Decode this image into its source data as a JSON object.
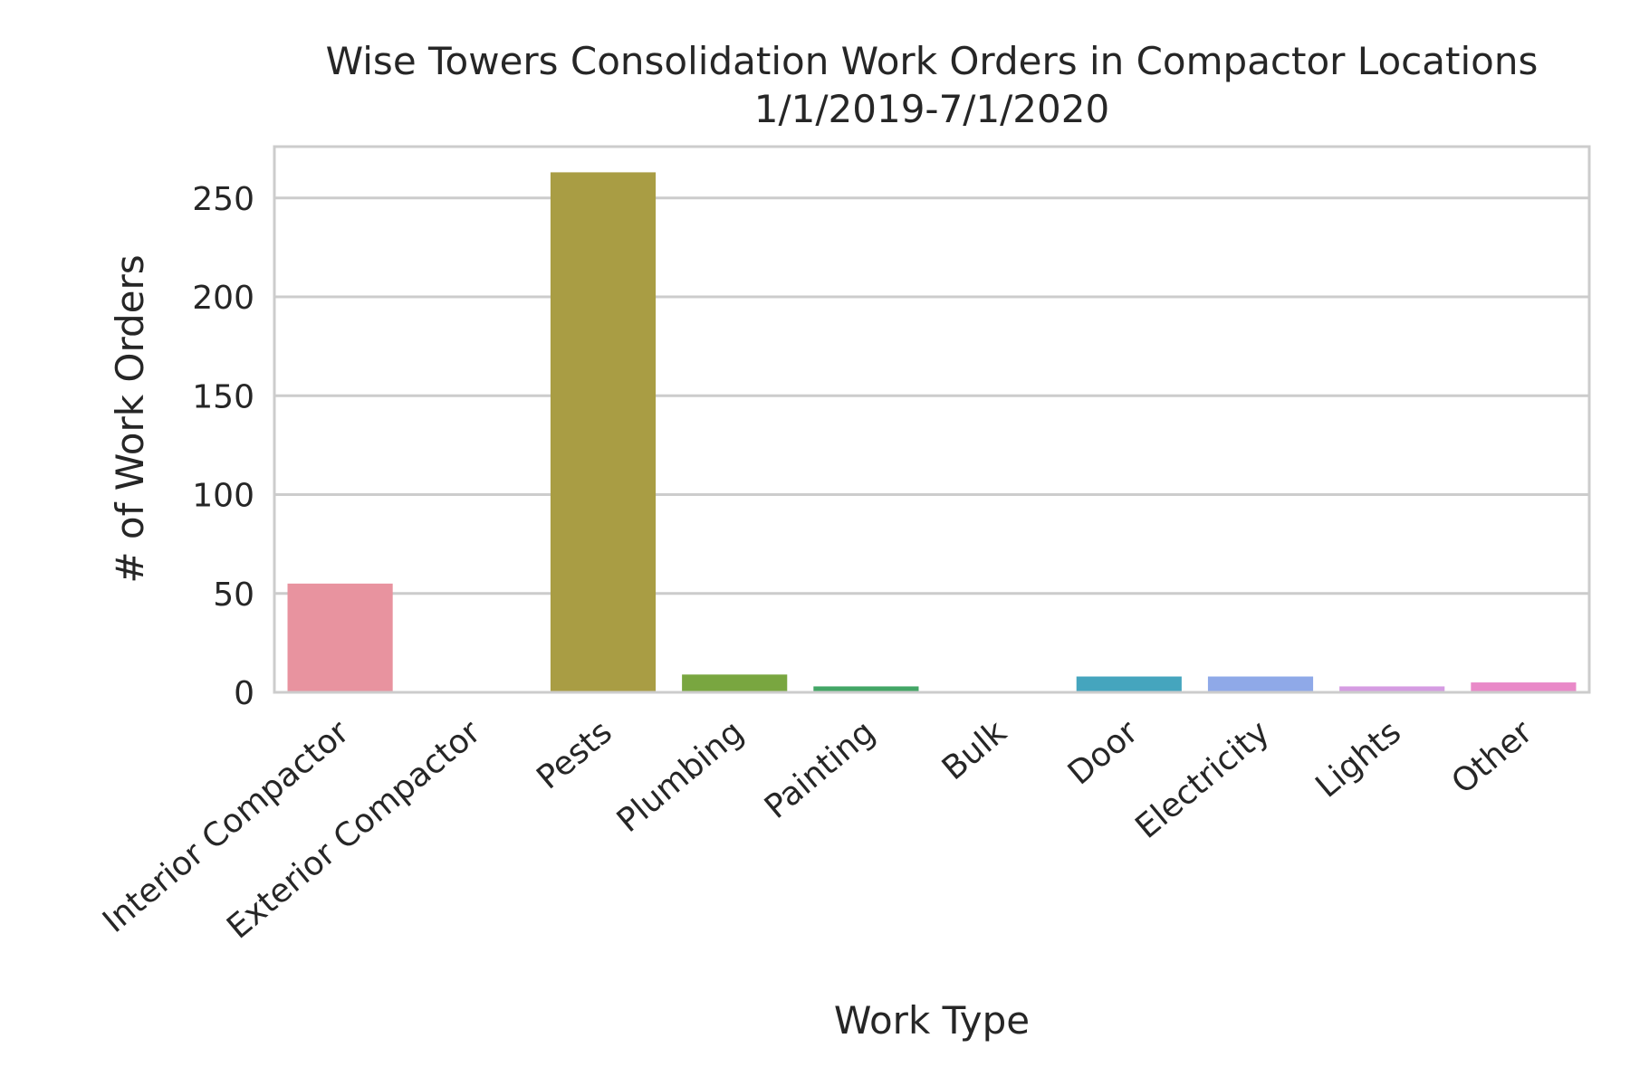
{
  "chart_data": {
    "type": "bar",
    "title": "Wise Towers Consolidation Work Orders in Compactor Locations",
    "subtitle": "1/1/2019-7/1/2020",
    "xlabel": "Work Type",
    "ylabel": "# of Work Orders",
    "categories": [
      "Interior Compactor",
      "Exterior Compactor",
      "Pests",
      "Plumbing",
      "Painting",
      "Bulk",
      "Door",
      "Electricity",
      "Lights",
      "Other"
    ],
    "values": [
      55,
      0,
      263,
      9,
      3,
      0,
      8,
      8,
      3,
      5
    ],
    "colors": [
      "#e8939f",
      "#d4a05a",
      "#a99d44",
      "#79a640",
      "#43a666",
      "#45a39a",
      "#45a5be",
      "#8fa9e8",
      "#d59ce2",
      "#e989c8"
    ],
    "ylim": [
      0,
      276
    ],
    "yticks": [
      0,
      50,
      100,
      150,
      200,
      250
    ],
    "grid": true,
    "legend": "none"
  }
}
